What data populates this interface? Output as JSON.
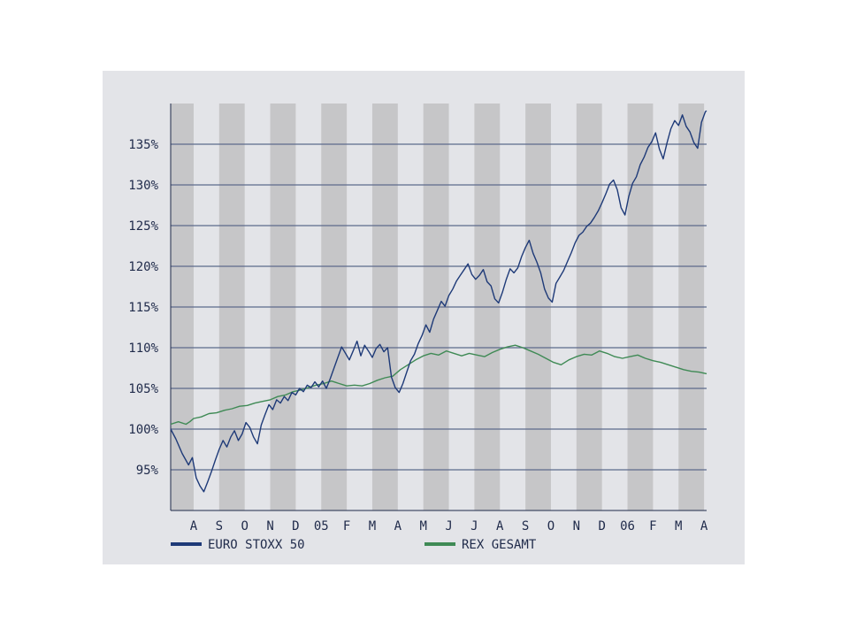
{
  "chart_data": {
    "type": "line",
    "grid": true,
    "legend_position": "bottom",
    "y_ticks": [
      "95%",
      "100%",
      "105%",
      "110%",
      "115%",
      "120%",
      "125%",
      "130%",
      "135%"
    ],
    "y_tick_values": [
      95,
      100,
      105,
      110,
      115,
      120,
      125,
      130,
      135
    ],
    "ylim": [
      90,
      140
    ],
    "x_tick_labels": [
      "A",
      "S",
      "O",
      "N",
      "D",
      "05",
      "F",
      "M",
      "A",
      "M",
      "J",
      "J",
      "A",
      "S",
      "O",
      "N",
      "D",
      "06",
      "F",
      "M",
      "A"
    ],
    "x_tick_positions": [
      1,
      2,
      3,
      4,
      5,
      6,
      7,
      8,
      9,
      10,
      11,
      12,
      13,
      14,
      15,
      16,
      17,
      18,
      19,
      20,
      21
    ],
    "xlim": [
      0.1,
      21.1
    ],
    "series": [
      {
        "name": "EURO STOXX 50",
        "color": "#1e3a78",
        "x": [
          0.1,
          0.3,
          0.55,
          0.8,
          0.95,
          1.1,
          1.25,
          1.4,
          1.55,
          1.7,
          1.85,
          2.0,
          2.15,
          2.3,
          2.45,
          2.6,
          2.75,
          2.9,
          3.05,
          3.2,
          3.35,
          3.5,
          3.65,
          3.8,
          3.95,
          4.1,
          4.25,
          4.4,
          4.55,
          4.7,
          4.85,
          5.0,
          5.15,
          5.3,
          5.45,
          5.6,
          5.75,
          5.9,
          6.05,
          6.2,
          6.35,
          6.5,
          6.65,
          6.8,
          6.95,
          7.1,
          7.25,
          7.4,
          7.55,
          7.7,
          7.85,
          8.0,
          8.15,
          8.3,
          8.45,
          8.6,
          8.75,
          8.9,
          9.05,
          9.2,
          9.35,
          9.5,
          9.65,
          9.8,
          9.95,
          10.1,
          10.25,
          10.4,
          10.55,
          10.7,
          10.85,
          11.0,
          11.15,
          11.3,
          11.45,
          11.6,
          11.75,
          11.9,
          12.05,
          12.2,
          12.35,
          12.5,
          12.65,
          12.8,
          12.95,
          13.1,
          13.25,
          13.4,
          13.55,
          13.7,
          13.85,
          14.0,
          14.15,
          14.3,
          14.45,
          14.6,
          14.75,
          14.9,
          15.05,
          15.2,
          15.35,
          15.5,
          15.65,
          15.8,
          15.95,
          16.1,
          16.25,
          16.4,
          16.55,
          16.7,
          16.85,
          17.0,
          17.15,
          17.3,
          17.45,
          17.6,
          17.75,
          17.9,
          18.05,
          18.2,
          18.35,
          18.5,
          18.65,
          18.8,
          18.95,
          19.1,
          19.25,
          19.4,
          19.55,
          19.7,
          19.85,
          20.0,
          20.15,
          20.3,
          20.45,
          20.6,
          20.75,
          20.9,
          21.05,
          21.1
        ],
        "y": [
          100.0,
          98.8,
          97.0,
          95.6,
          96.5,
          94.0,
          93.0,
          92.3,
          93.5,
          94.8,
          96.2,
          97.5,
          98.6,
          97.8,
          99.0,
          99.8,
          98.6,
          99.4,
          100.8,
          100.2,
          99.0,
          98.2,
          100.5,
          101.8,
          103.0,
          102.4,
          103.6,
          103.2,
          104.0,
          103.5,
          104.5,
          104.2,
          105.0,
          104.6,
          105.4,
          105.1,
          105.8,
          105.2,
          105.9,
          105.0,
          106.2,
          107.5,
          108.8,
          110.1,
          109.3,
          108.5,
          109.6,
          110.8,
          109.0,
          110.3,
          109.6,
          108.8,
          109.9,
          110.4,
          109.5,
          110.0,
          106.4,
          105.1,
          104.5,
          105.6,
          107.0,
          108.4,
          109.2,
          110.5,
          111.5,
          112.8,
          111.9,
          113.5,
          114.6,
          115.7,
          115.1,
          116.4,
          117.2,
          118.2,
          118.9,
          119.6,
          120.3,
          119.0,
          118.4,
          118.9,
          119.6,
          118.1,
          117.6,
          116.0,
          115.5,
          116.8,
          118.4,
          119.7,
          119.2,
          119.8,
          121.2,
          122.3,
          123.2,
          121.6,
          120.5,
          119.2,
          117.2,
          116.1,
          115.6,
          117.9,
          118.7,
          119.5,
          120.6,
          121.7,
          122.9,
          123.8,
          124.2,
          124.9,
          125.3,
          126.0,
          126.8,
          127.8,
          128.9,
          130.1,
          130.6,
          129.4,
          127.2,
          126.3,
          128.6,
          130.2,
          131.0,
          132.5,
          133.4,
          134.6,
          135.3,
          136.4,
          134.4,
          133.2,
          135.2,
          136.9,
          137.9,
          137.3,
          138.6,
          137.2,
          136.5,
          135.2,
          134.5,
          137.7,
          139.0,
          139.1
        ]
      },
      {
        "name": "REX GESAMT",
        "color": "#3f8a55",
        "x": [
          0.1,
          0.4,
          0.7,
          0.85,
          1.0,
          1.3,
          1.6,
          1.9,
          2.2,
          2.5,
          2.8,
          3.1,
          3.4,
          3.7,
          4.0,
          4.3,
          4.6,
          4.9,
          5.2,
          5.5,
          5.8,
          6.1,
          6.4,
          6.7,
          7.0,
          7.3,
          7.6,
          7.9,
          8.2,
          8.5,
          8.8,
          9.1,
          9.4,
          9.7,
          10.0,
          10.3,
          10.6,
          10.9,
          11.2,
          11.5,
          11.8,
          12.1,
          12.4,
          12.7,
          13.0,
          13.3,
          13.6,
          13.9,
          14.2,
          14.5,
          14.8,
          15.1,
          15.4,
          15.7,
          16.0,
          16.3,
          16.6,
          16.9,
          17.2,
          17.5,
          17.8,
          18.1,
          18.4,
          18.7,
          19.0,
          19.3,
          19.6,
          19.9,
          20.2,
          20.5,
          20.8,
          21.1
        ],
        "y": [
          100.6,
          100.9,
          100.6,
          100.9,
          101.3,
          101.5,
          101.9,
          102.0,
          102.3,
          102.5,
          102.8,
          102.9,
          103.2,
          103.4,
          103.6,
          104.0,
          104.2,
          104.6,
          104.8,
          105.1,
          105.4,
          105.6,
          105.9,
          105.6,
          105.3,
          105.4,
          105.3,
          105.6,
          106.0,
          106.3,
          106.5,
          107.3,
          107.9,
          108.5,
          109.0,
          109.3,
          109.1,
          109.6,
          109.3,
          109.0,
          109.3,
          109.1,
          108.9,
          109.4,
          109.8,
          110.1,
          110.3,
          110.0,
          109.6,
          109.2,
          108.7,
          108.2,
          107.9,
          108.5,
          108.9,
          109.2,
          109.1,
          109.6,
          109.3,
          108.9,
          108.7,
          108.9,
          109.1,
          108.7,
          108.4,
          108.2,
          107.9,
          107.6,
          107.3,
          107.1,
          107.0,
          106.8
        ]
      }
    ]
  }
}
